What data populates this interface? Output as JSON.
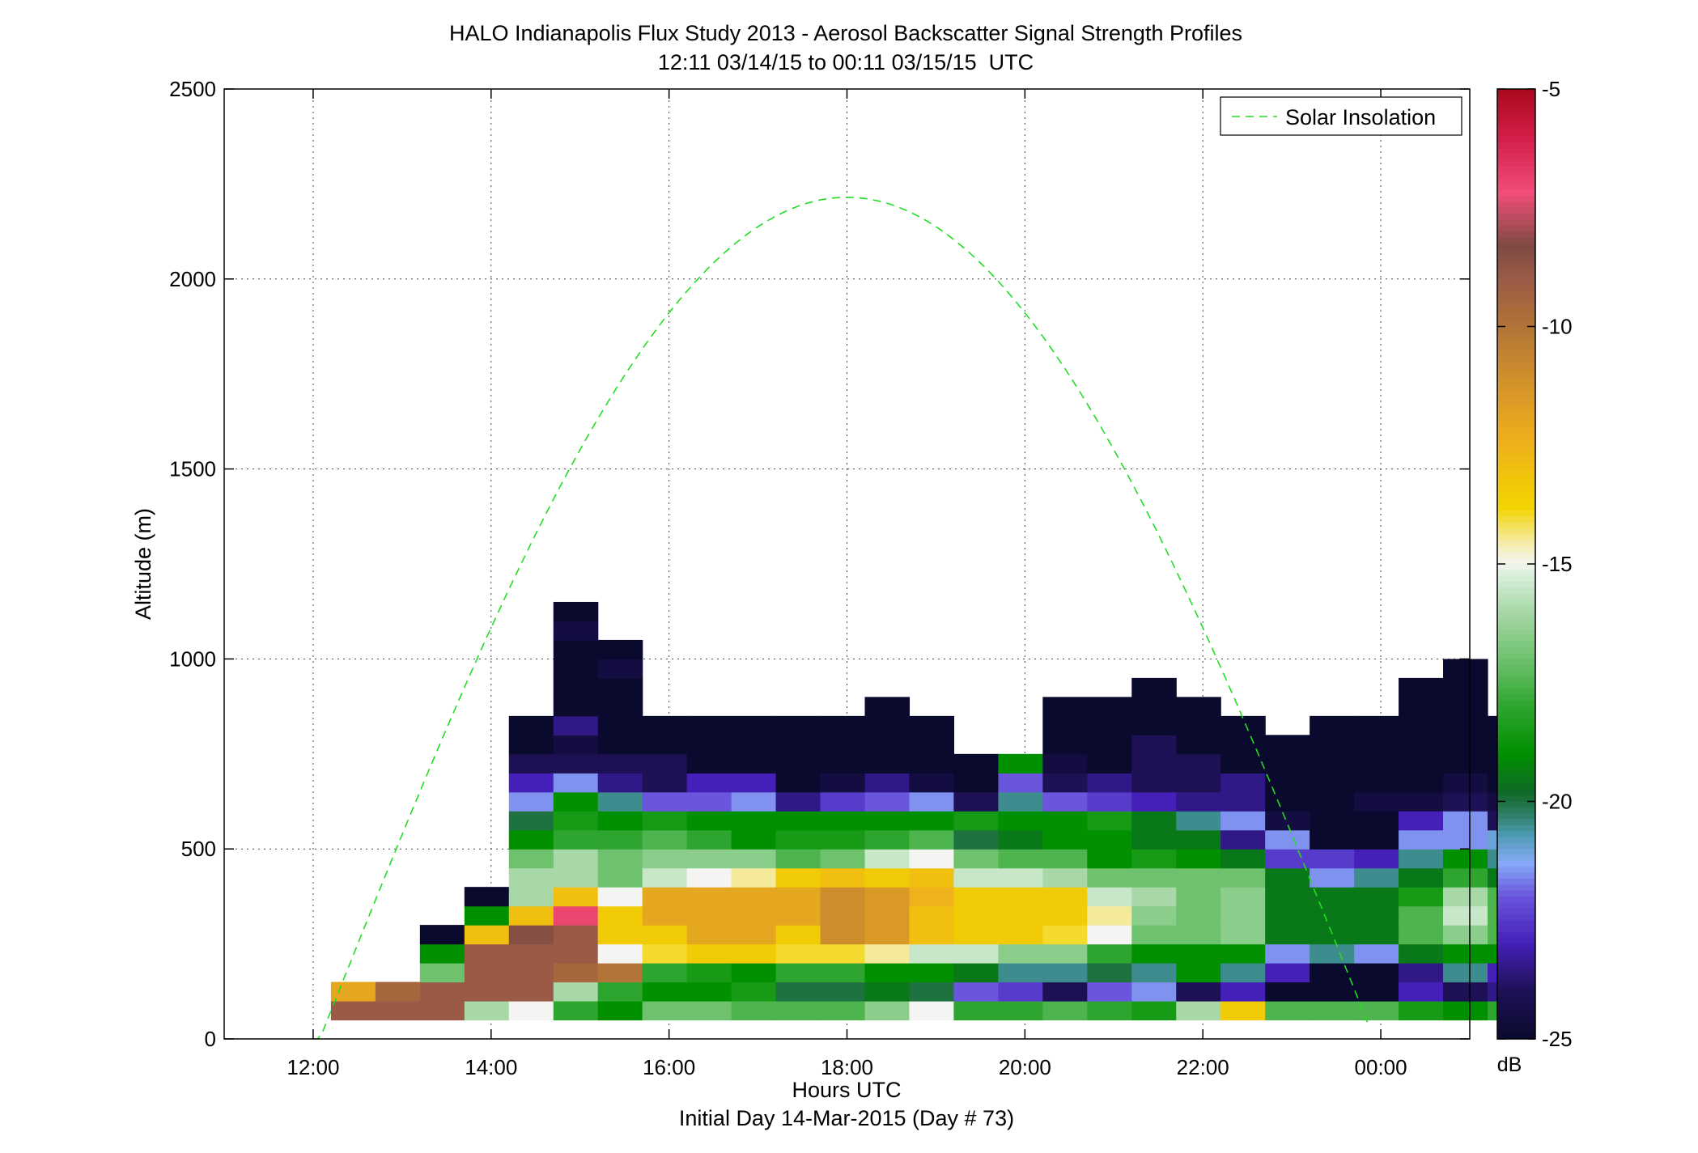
{
  "chart_data": {
    "type": "heatmap",
    "title": "HALO Indianapolis Flux Study 2013 - Aerosol Backscatter Signal Strength Profiles",
    "subtitle": "12:11 03/14/15 to 00:11 03/15/15  UTC",
    "xlabel": "Hours UTC",
    "xlabel2": "Initial Day 14-Mar-2015 (Day # 73)",
    "ylabel": "Altitude (m)",
    "xlim": [
      11.0,
      25.0
    ],
    "ylim": [
      0,
      2500
    ],
    "x_ticks": [
      12,
      14,
      16,
      18,
      20,
      22,
      24
    ],
    "x_tick_labels": [
      "12:00",
      "14:00",
      "16:00",
      "18:00",
      "20:00",
      "22:00",
      "00:00"
    ],
    "y_ticks": [
      0,
      500,
      1000,
      1500,
      2000,
      2500
    ],
    "y_tick_labels": [
      "0",
      "500",
      "1000",
      "1500",
      "2000",
      "2500"
    ],
    "grid": true,
    "legend": {
      "position": "top-right",
      "entries": [
        {
          "label": "Solar Insolation",
          "color": "#22dd22",
          "style": "dashed"
        }
      ]
    },
    "colorbar": {
      "label": "dB",
      "min": -25,
      "max": -5,
      "ticks": [
        -5,
        -10,
        -15,
        -20,
        -25
      ],
      "tick_labels": [
        "-5",
        "-10",
        "-15",
        "-20",
        "-25"
      ]
    },
    "cell": {
      "x_start": 12.2,
      "dx": 0.5,
      "y_start": 50,
      "dy": 50
    },
    "columns": [
      [
        -9,
        -12
      ],
      [
        -9,
        -9.5
      ],
      [
        -9,
        -9,
        -17,
        -19,
        -25
      ],
      [
        -16,
        -9,
        -9,
        -9,
        -13,
        -19,
        -25
      ],
      [
        -15,
        -9,
        -9,
        -9,
        -8.5,
        -13,
        -16,
        -16,
        -17,
        -19,
        -20,
        -21.5,
        -23,
        -24,
        -25,
        -25
      ],
      [
        -18,
        -16,
        -9.5,
        -9,
        -9,
        -7,
        -13,
        -16,
        -16,
        -18,
        -18.5,
        -19,
        -21.5,
        -24,
        -24.5,
        -23.5,
        -25,
        -25,
        -25,
        -25,
        -24.5,
        -25
      ],
      [
        -19,
        -18,
        -10,
        -15,
        -13.5,
        -13.5,
        -15,
        -17,
        -17,
        -18,
        -19,
        -20.5,
        -23.5,
        -24,
        -25,
        -25,
        -25,
        -25,
        -24.5,
        -25
      ],
      [
        -17,
        -19,
        -18,
        -14,
        -13.5,
        -12,
        -12,
        -15.5,
        -16.5,
        -17.5,
        -18.5,
        -22,
        -24,
        -24,
        -25,
        -25
      ],
      [
        -17,
        -19,
        -18.5,
        -13.5,
        -12,
        -12,
        -12,
        -15,
        -16.5,
        -18,
        -19,
        -22,
        -23,
        -25,
        -25,
        -25
      ],
      [
        -17.5,
        -18.5,
        -19,
        -13.5,
        -12,
        -12,
        -12,
        -14.5,
        -16.5,
        -19,
        -19,
        -21.5,
        -23,
        -25,
        -25,
        -25
      ],
      [
        -17.5,
        -20,
        -18,
        -14,
        -13.5,
        -12,
        -12,
        -13.5,
        -17.5,
        -18.5,
        -19,
        -23.5,
        -25,
        -25,
        -25,
        -25
      ],
      [
        -17.5,
        -20,
        -18,
        -14,
        -11,
        -11,
        -11,
        -13,
        -17,
        -18.5,
        -19,
        -22.5,
        -24.5,
        -25,
        -25,
        -25
      ],
      [
        -16.5,
        -19.5,
        -19,
        -14.5,
        -11.5,
        -11.5,
        -11.5,
        -13.5,
        -15.5,
        -18,
        -19,
        -22,
        -23.5,
        -25,
        -25,
        -25,
        -25
      ],
      [
        -15,
        -20,
        -19,
        -15.5,
        -13,
        -13,
        -12.5,
        -13,
        -15,
        -17.5,
        -19,
        -21.5,
        -24.5,
        -25,
        -25,
        -25
      ],
      [
        -18,
        -22,
        -19.5,
        -15.5,
        -13.5,
        -13.5,
        -13.5,
        -15.5,
        -17,
        -20,
        -18.5,
        -24,
        -25,
        -25
      ],
      [
        -18,
        -22.5,
        -20.5,
        -16.5,
        -13.5,
        -13.5,
        -13.5,
        -15.5,
        -17.5,
        -19.5,
        -19,
        -20.5,
        -22,
        -19
      ],
      [
        -17.5,
        -24,
        -20.5,
        -16.5,
        -14,
        -13.5,
        -13.5,
        -16,
        -17.5,
        -19,
        -19,
        -22,
        -24,
        -24.5,
        -25,
        -25,
        -25
      ],
      [
        -18,
        -22,
        -20,
        -18,
        -15,
        -14.5,
        -15.5,
        -17,
        -19,
        -19,
        -18.5,
        -22.5,
        -23.5,
        -25,
        -25,
        -25,
        -25
      ],
      [
        -18.5,
        -21.5,
        -20.5,
        -19,
        -17,
        -16.5,
        -16,
        -17,
        -18.5,
        -19.5,
        -19.5,
        -23,
        -24,
        -24,
        -24,
        -25,
        -25,
        -25
      ],
      [
        -16,
        -24,
        -19,
        -19,
        -17,
        -17,
        -17,
        -17,
        -19,
        -19.5,
        -20.5,
        -23.5,
        -24,
        -24,
        -25,
        -25,
        -25
      ],
      [
        -13.5,
        -23,
        -20.5,
        -19,
        -16.5,
        -16.5,
        -16.5,
        -17,
        -19.5,
        -23.5,
        -21.5,
        -23.5,
        -23.5,
        -25,
        -25,
        -25
      ],
      [
        -17.5,
        -25,
        -23,
        -21.5,
        -19.5,
        -19.5,
        -19.5,
        -19.5,
        -22.5,
        -21.5,
        -24.5,
        -25,
        -25,
        -25,
        -25
      ],
      [
        -17.5,
        -25,
        -25,
        -20.5,
        -19.5,
        -19.5,
        -19.5,
        -21.5,
        -22.5,
        -25,
        -25,
        -25,
        -25,
        -25,
        -25,
        -25
      ],
      [
        -17.5,
        -25,
        -25,
        -21.5,
        -19.5,
        -19.5,
        -19.5,
        -20.5,
        -23,
        -25,
        -25,
        -24.5,
        -25,
        -25,
        -25,
        -25
      ],
      [
        -18.5,
        -23,
        -23.5,
        -19.5,
        -17.5,
        -17.5,
        -18.5,
        -19.5,
        -20.5,
        -21.5,
        -23,
        -24.5,
        -25,
        -25,
        -25,
        -25,
        -25,
        -25
      ],
      [
        -19,
        -24,
        -20.5,
        -19,
        -16.5,
        -15.5,
        -16,
        -18,
        -19,
        -21.5,
        -21.5,
        -24,
        -24.5,
        -25,
        -25,
        -25,
        -25,
        -25,
        -25
      ],
      [
        -18,
        -23.5,
        -23,
        -19,
        -17.5,
        -17.5,
        -17.5,
        -19.5,
        -20.5,
        -21,
        -24,
        -24.5,
        -25,
        -25,
        -25,
        -25
      ]
    ],
    "insolation_curve": {
      "peak_x": 18.0,
      "peak_y": 2215,
      "zero_left_x": 12.0,
      "zero_right_x": 23.85
    }
  }
}
